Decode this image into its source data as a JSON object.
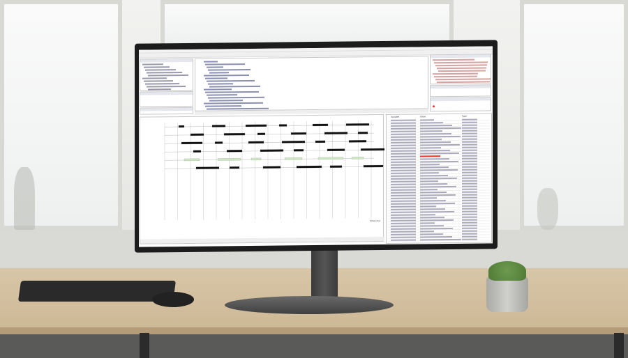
{
  "colors": {
    "signal_black": "#111111",
    "signal_green": "#cfe8c4",
    "highlight_red": "#e33",
    "accent": "#3a6ea5"
  },
  "timing": {
    "axis_label": "Time (ms)",
    "tracks": 6
  },
  "watch_table": {
    "headers": [
      "Variable",
      "Value",
      "Type"
    ],
    "rows": 44
  }
}
